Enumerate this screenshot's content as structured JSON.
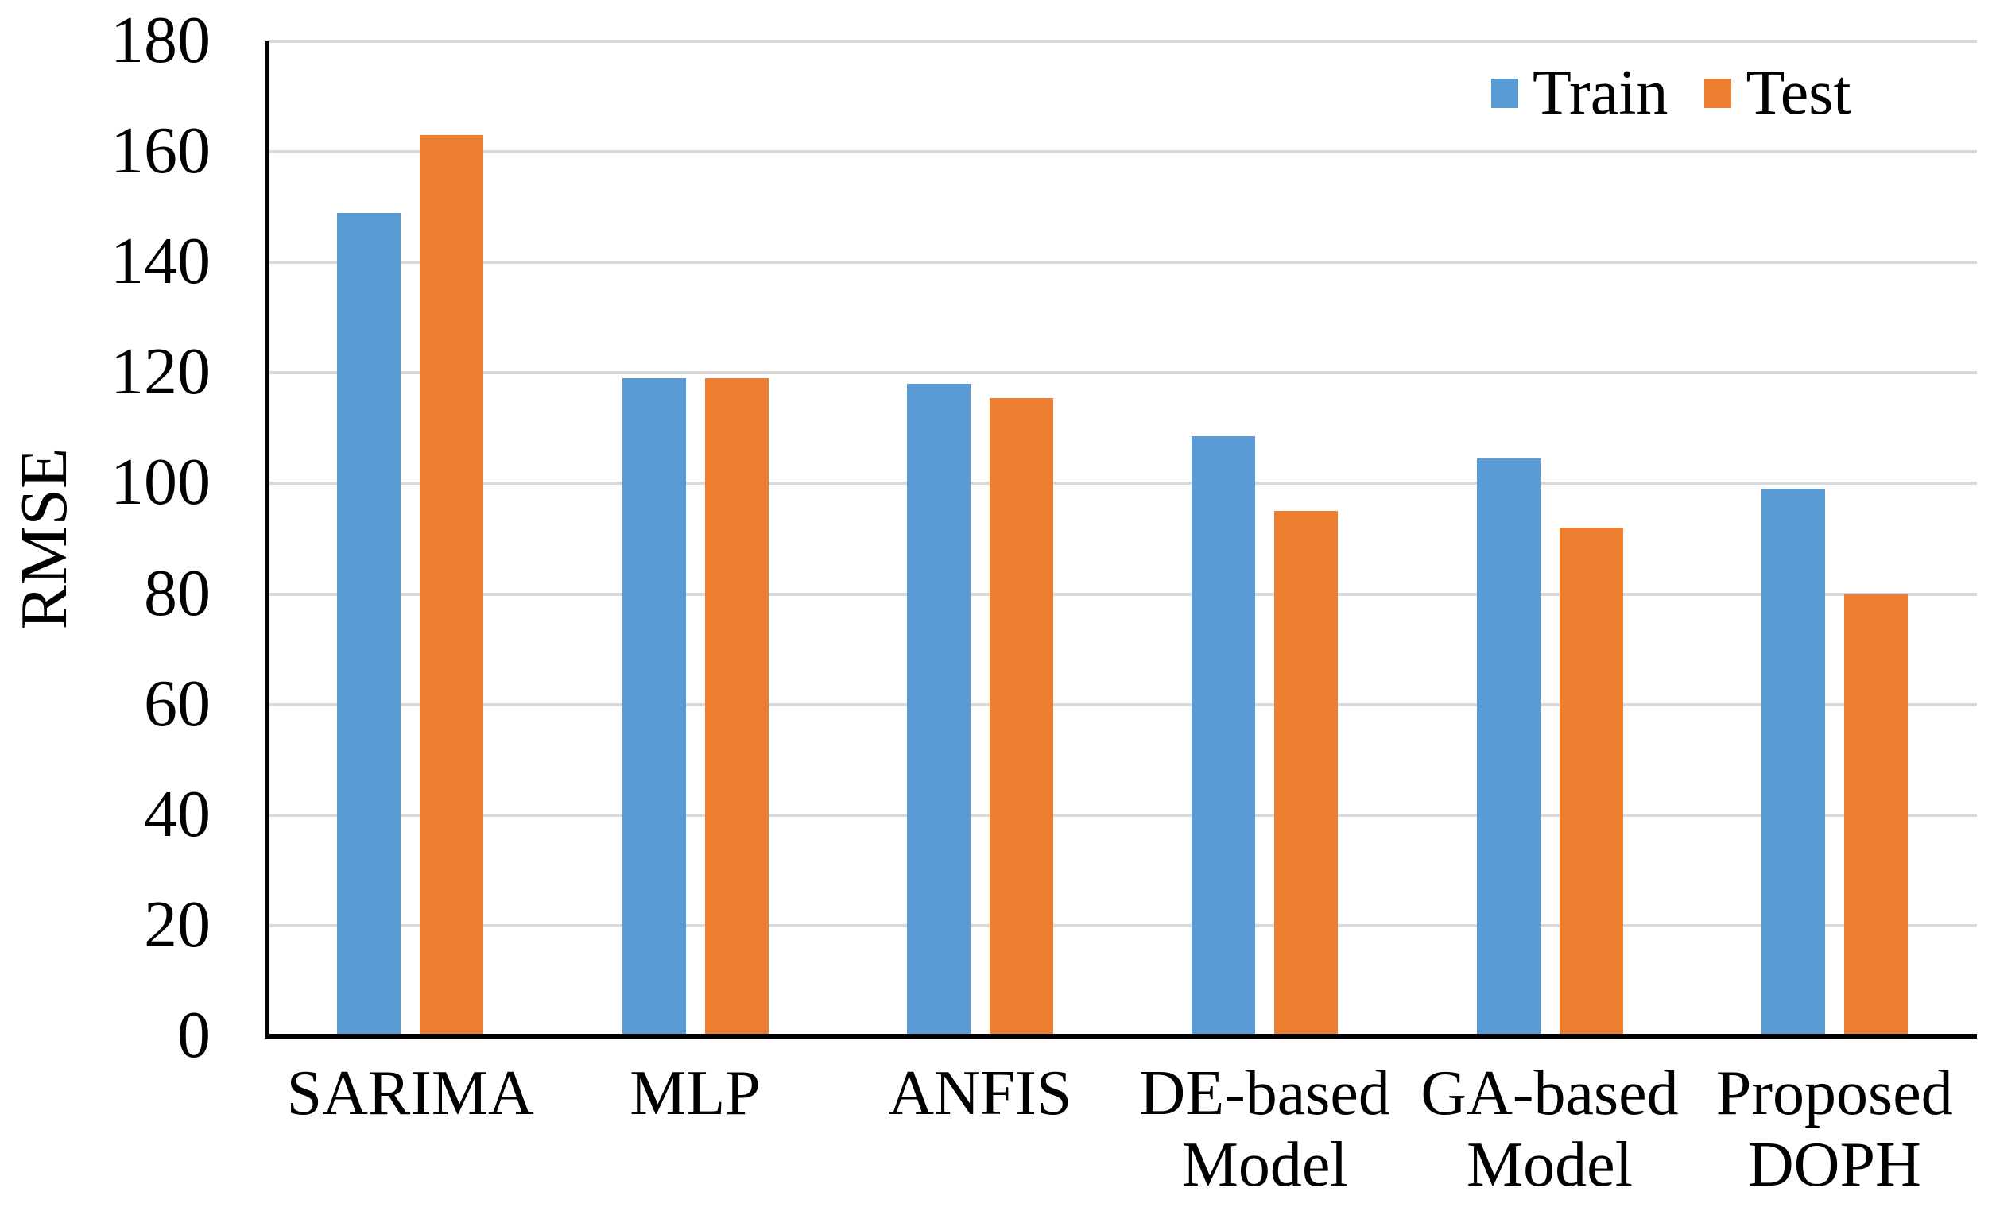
{
  "chart_data": {
    "type": "bar",
    "title": "",
    "xlabel": "",
    "ylabel": "RMSE",
    "categories": [
      "SARIMA",
      "MLP",
      "ANFIS",
      "DE-based\nModel",
      "GA-based\nModel",
      "Proposed\nDOPH"
    ],
    "series": [
      {
        "name": "Train",
        "color": "#5B9BD5",
        "values": [
          149,
          119,
          118,
          108.5,
          104.5,
          99
        ]
      },
      {
        "name": "Test",
        "color": "#ED7D31",
        "values": [
          163,
          119,
          115.5,
          95,
          92,
          80
        ]
      }
    ],
    "ylim": [
      0,
      180
    ],
    "yticks": [
      0,
      20,
      40,
      60,
      80,
      100,
      120,
      140,
      160,
      180
    ],
    "grid": "horizontal",
    "gridline_color": "#D9D9D9",
    "axis_color": "#000000",
    "text_color": "#000000",
    "background": "#FFFFFF",
    "legend_position": "top-right",
    "legend_entries": [
      "Train",
      "Test"
    ]
  }
}
